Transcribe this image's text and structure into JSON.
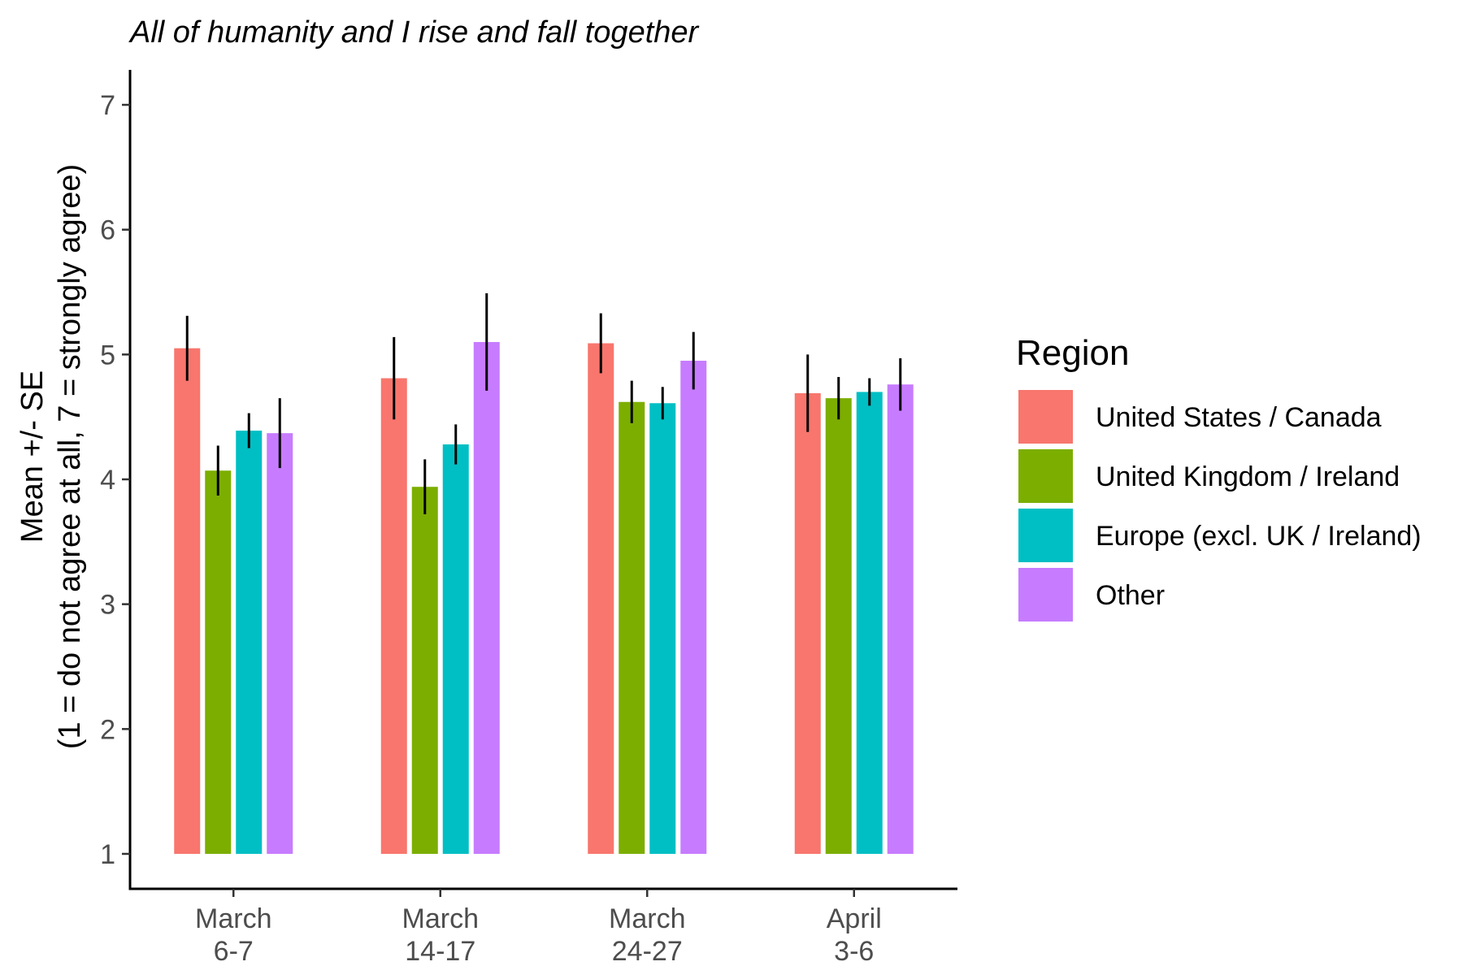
{
  "chart_data": {
    "type": "bar",
    "title": "All of humanity and I rise and fall together",
    "ylabel_line1": "Mean +/- SE",
    "ylabel_line2": "(1 = do not agree at all, 7 = strongly agree)",
    "xlabel": "",
    "categories": [
      [
        "March",
        "6-7"
      ],
      [
        "March",
        "14-17"
      ],
      [
        "March",
        "24-27"
      ],
      [
        "April",
        "3-6"
      ]
    ],
    "yticks": [
      1,
      2,
      3,
      4,
      5,
      6,
      7
    ],
    "ylim": [
      0.72,
      7.28
    ],
    "bar_base": 1,
    "legend_title": "Region",
    "legend_position": "right",
    "grid": false,
    "series": [
      {
        "name": "United States / Canada",
        "color": "#F8766D",
        "values": [
          5.05,
          4.81,
          5.09,
          4.69
        ],
        "errors": [
          0.26,
          0.33,
          0.24,
          0.31
        ]
      },
      {
        "name": "United Kingdom / Ireland",
        "color": "#7CAE00",
        "values": [
          4.07,
          3.94,
          4.62,
          4.65
        ],
        "errors": [
          0.2,
          0.22,
          0.17,
          0.17
        ]
      },
      {
        "name": "Europe (excl. UK / Ireland)",
        "color": "#00BFC4",
        "values": [
          4.39,
          4.28,
          4.61,
          4.7
        ],
        "errors": [
          0.14,
          0.16,
          0.13,
          0.11
        ]
      },
      {
        "name": "Other",
        "color": "#C77CFF",
        "values": [
          4.37,
          5.1,
          4.95,
          4.76
        ],
        "errors": [
          0.28,
          0.39,
          0.23,
          0.21
        ]
      }
    ]
  }
}
